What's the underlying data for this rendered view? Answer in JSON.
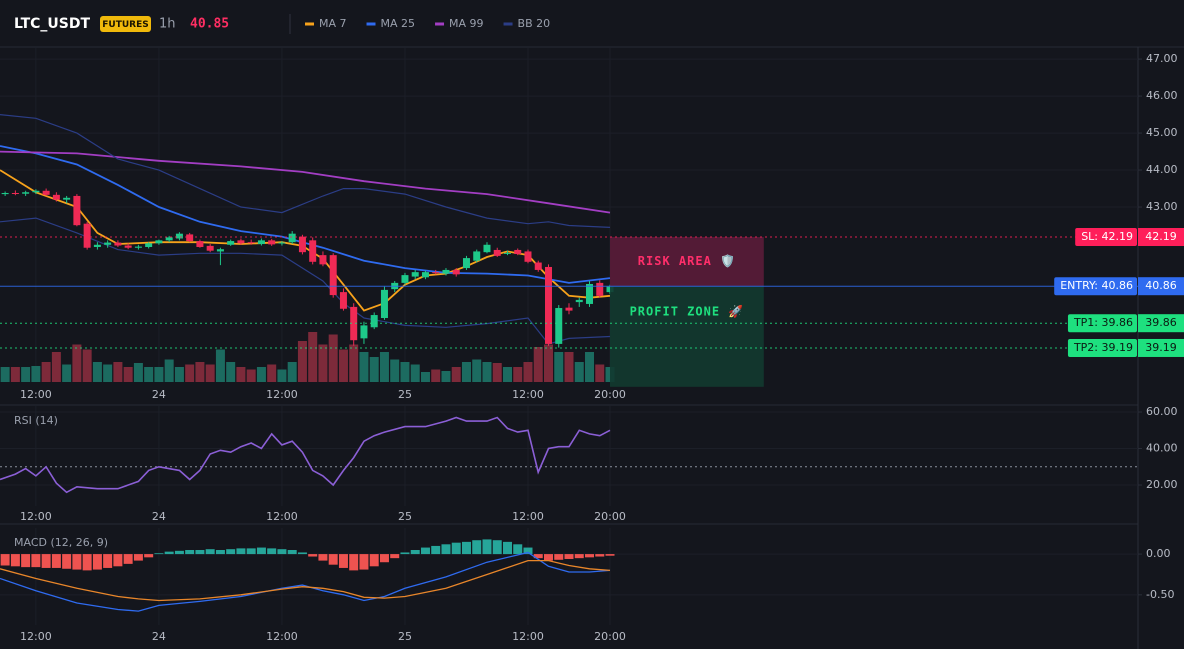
{
  "header": {
    "symbol": "LTC_USDT",
    "badge": "FUTURES",
    "interval": "1h",
    "price": 40.85
  },
  "chart_data": [
    {
      "type": "candlestick",
      "xlim": [
        0.5,
        111.5
      ],
      "xticks": [
        {
          "value": 4,
          "label": "12:00"
        },
        {
          "value": 16,
          "label": "24"
        },
        {
          "value": 28,
          "label": "12:00"
        },
        {
          "value": 40,
          "label": "25"
        },
        {
          "value": 52,
          "label": "12:00"
        },
        {
          "value": 60,
          "label": "20:00"
        }
      ],
      "ylim": [
        38.27,
        47.3
      ],
      "yticks": [
        {
          "value": 47,
          "label": "47.00"
        },
        {
          "value": 46,
          "label": "46.00"
        },
        {
          "value": 45,
          "label": "45.00"
        },
        {
          "value": 44,
          "label": "44.00"
        },
        {
          "value": 43,
          "label": "43.00"
        }
      ],
      "up_color": "#1ec98a",
      "down_color": "#ef2a55",
      "volume_up_color": "#1c6b60",
      "volume_down_color": "#7d2a3a",
      "x": [
        1,
        2,
        3,
        4,
        5,
        6,
        7,
        8,
        9,
        10,
        11,
        12,
        13,
        14,
        15,
        16,
        17,
        18,
        19,
        20,
        21,
        22,
        23,
        24,
        25,
        26,
        27,
        28,
        29,
        30,
        31,
        32,
        33,
        34,
        35,
        36,
        37,
        38,
        39,
        40,
        41,
        42,
        43,
        44,
        45,
        46,
        47,
        48,
        49,
        50,
        51,
        52,
        53,
        54,
        55,
        56,
        57,
        58,
        59,
        60
      ],
      "open": [
        43.35,
        43.38,
        43.36,
        43.4,
        43.44,
        43.33,
        43.2,
        43.3,
        42.55,
        41.92,
        41.98,
        42.04,
        41.96,
        41.9,
        41.92,
        42.02,
        42.1,
        42.15,
        42.26,
        42.08,
        41.95,
        41.8,
        41.98,
        42.1,
        42.05,
        42.0,
        42.1,
        42.02,
        42.05,
        42.2,
        42.1,
        41.7,
        41.7,
        40.7,
        40.3,
        39.45,
        39.75,
        40.0,
        40.78,
        40.95,
        41.12,
        41.1,
        41.24,
        41.2,
        41.3,
        41.35,
        41.55,
        41.78,
        41.84,
        41.74,
        41.84,
        41.8,
        41.5,
        41.38,
        39.3,
        40.28,
        40.43,
        40.38,
        40.95,
        40.7
      ],
      "high": [
        43.42,
        43.45,
        43.44,
        43.48,
        43.5,
        43.4,
        43.3,
        43.35,
        42.6,
        42.05,
        42.1,
        42.1,
        42.02,
        41.98,
        42.05,
        42.12,
        42.22,
        42.32,
        42.3,
        42.12,
        42.0,
        41.9,
        42.12,
        42.15,
        42.12,
        42.15,
        42.14,
        42.08,
        42.35,
        42.25,
        42.18,
        41.8,
        41.75,
        40.8,
        40.4,
        39.9,
        40.15,
        40.85,
        41.0,
        41.22,
        41.3,
        41.28,
        41.3,
        41.35,
        41.35,
        41.68,
        41.85,
        42.05,
        41.9,
        41.82,
        41.88,
        41.85,
        41.55,
        41.45,
        40.35,
        40.4,
        40.55,
        41.0,
        41.02,
        40.9
      ],
      "low": [
        43.3,
        43.32,
        43.3,
        43.35,
        43.3,
        43.15,
        43.1,
        42.48,
        41.85,
        41.85,
        41.9,
        41.92,
        41.86,
        41.85,
        41.88,
        41.98,
        42.05,
        42.1,
        42.05,
        41.9,
        41.78,
        41.43,
        41.95,
        41.98,
        41.98,
        41.96,
        41.95,
        41.96,
        42.0,
        41.72,
        41.45,
        41.4,
        40.55,
        40.2,
        39.25,
        39.3,
        39.7,
        39.95,
        40.7,
        40.9,
        41.05,
        41.05,
        41.18,
        41.15,
        41.12,
        41.3,
        41.5,
        41.75,
        41.65,
        41.7,
        41.7,
        41.48,
        41.25,
        39.25,
        39.2,
        40.1,
        40.3,
        40.3,
        40.55,
        40.65
      ],
      "close": [
        43.38,
        43.36,
        43.4,
        43.44,
        43.33,
        43.2,
        43.25,
        42.51,
        41.9,
        41.98,
        42.04,
        41.96,
        41.9,
        41.93,
        42.02,
        42.1,
        42.18,
        42.28,
        42.08,
        41.92,
        41.82,
        41.86,
        42.08,
        42.02,
        42.03,
        42.1,
        41.99,
        42.04,
        42.28,
        41.78,
        41.52,
        41.45,
        40.62,
        40.25,
        39.4,
        39.8,
        40.08,
        40.76,
        40.95,
        41.16,
        41.24,
        41.24,
        41.22,
        41.3,
        41.18,
        41.62,
        41.8,
        41.98,
        41.68,
        41.76,
        41.73,
        41.52,
        41.3,
        39.3,
        40.27,
        40.2,
        40.49,
        40.92,
        40.6,
        40.85
      ],
      "vlim": [
        0,
        100
      ],
      "volume": [
        30,
        30,
        30,
        32,
        40,
        60,
        35,
        75,
        65,
        40,
        35,
        40,
        30,
        38,
        30,
        30,
        45,
        30,
        35,
        40,
        35,
        65,
        40,
        30,
        25,
        30,
        35,
        25,
        40,
        82,
        100,
        75,
        95,
        65,
        75,
        60,
        50,
        60,
        45,
        40,
        35,
        20,
        25,
        22,
        30,
        40,
        45,
        40,
        38,
        30,
        30,
        40,
        70,
        75,
        60,
        60,
        40,
        60,
        35,
        30
      ],
      "series": [
        {
          "name": "MA 7",
          "color": "#f7a21b",
          "x": [
            0.5,
            4,
            8,
            10,
            12,
            16,
            20,
            24,
            28,
            30,
            32,
            34,
            36,
            38,
            40,
            42,
            44,
            46,
            48,
            50,
            52,
            54,
            56,
            58,
            60
          ],
          "values": [
            44.0,
            43.4,
            43.0,
            42.3,
            42.0,
            42.05,
            42.05,
            42.0,
            42.05,
            41.95,
            41.6,
            40.9,
            40.2,
            40.4,
            40.9,
            41.15,
            41.2,
            41.4,
            41.65,
            41.8,
            41.7,
            41.1,
            40.6,
            40.55,
            40.6
          ]
        },
        {
          "name": "MA 25",
          "color": "#2f6bf0",
          "x": [
            0.5,
            4,
            8,
            12,
            16,
            20,
            24,
            28,
            30,
            32,
            36,
            40,
            44,
            48,
            52,
            56,
            60
          ],
          "values": [
            44.65,
            44.45,
            44.15,
            43.6,
            43.0,
            42.6,
            42.35,
            42.2,
            42.05,
            41.9,
            41.55,
            41.35,
            41.22,
            41.2,
            41.15,
            40.95,
            41.08
          ]
        },
        {
          "name": "MA 99",
          "color": "#a33ec4",
          "x": [
            0.5,
            8,
            16,
            24,
            30,
            36,
            42,
            48,
            54,
            60
          ],
          "values": [
            44.5,
            44.45,
            44.25,
            44.1,
            43.95,
            43.7,
            43.5,
            43.35,
            43.1,
            42.85
          ]
        },
        {
          "name": "BB 20",
          "color": "#2b3d86",
          "x": [
            0.5,
            4,
            8,
            12,
            16,
            20,
            24,
            28,
            32,
            34,
            36,
            40,
            44,
            48,
            52,
            54,
            56,
            60
          ],
          "upper": [
            45.5,
            45.4,
            45.0,
            44.3,
            44.0,
            43.5,
            43.0,
            42.85,
            43.3,
            43.5,
            43.5,
            43.35,
            43.0,
            42.7,
            42.55,
            42.6,
            42.5,
            42.45
          ],
          "lower": [
            42.6,
            42.7,
            42.3,
            41.85,
            41.7,
            41.75,
            41.75,
            41.7,
            41.0,
            40.4,
            40.0,
            39.8,
            39.75,
            39.85,
            40.0,
            39.3,
            39.45,
            39.5
          ]
        }
      ],
      "levels": [
        {
          "label": "SL: 42.19",
          "value": 42.19,
          "color": "#ff1f5a",
          "text_color": "#ffffff",
          "style": "dotted"
        },
        {
          "label": "ENTRY: 40.86",
          "value": 40.86,
          "color": "#2f6bf0",
          "text_color": "#ffffff",
          "style": "solid"
        },
        {
          "label": "TP1: 39.86",
          "value": 39.86,
          "color": "#1ee07f",
          "text_color": "#0b1a12",
          "style": "dotted"
        },
        {
          "label": "TP2: 39.19",
          "value": 39.19,
          "color": "#1ee07f",
          "text_color": "#0b1a12",
          "style": "dotted"
        }
      ],
      "zones": [
        {
          "label": "RISK AREA 🛡️",
          "x": [
            60,
            75
          ],
          "y": [
            40.86,
            42.19
          ],
          "color": "#5a1c3a",
          "text_color": "#ff2e6a"
        },
        {
          "label": "PROFIT ZONE 🚀",
          "x": [
            60,
            75
          ],
          "y": [
            38.14,
            40.86
          ],
          "color": "#123a30",
          "text_color": "#1ee07f"
        }
      ]
    },
    {
      "type": "line",
      "title": "RSI (14)",
      "xlim": [
        0.5,
        111.5
      ],
      "xticks": [
        {
          "value": 4,
          "label": "12:00"
        },
        {
          "value": 16,
          "label": "24"
        },
        {
          "value": 28,
          "label": "12:00"
        },
        {
          "value": 40,
          "label": "25"
        },
        {
          "value": 52,
          "label": "12:00"
        },
        {
          "value": 60,
          "label": "20:00"
        }
      ],
      "ylim": [
        8.5,
        63.3
      ],
      "yticks": [
        {
          "value": 60,
          "label": "60.00"
        },
        {
          "value": 40,
          "label": "40.00"
        },
        {
          "value": 20,
          "label": "20.00"
        }
      ],
      "hline": 30,
      "series": [
        {
          "color": "#8b5fd6",
          "x": [
            0.5,
            2,
            3,
            4,
            5,
            6,
            7,
            8,
            10,
            12,
            14,
            15,
            16,
            18,
            19,
            20,
            21,
            22,
            23,
            24,
            25,
            26,
            27,
            28,
            29,
            30,
            31,
            32,
            33,
            34,
            35,
            36,
            37,
            38,
            40,
            42,
            44,
            45,
            46,
            48,
            49,
            50,
            51,
            52,
            53,
            54,
            55,
            56,
            57,
            58,
            59,
            60
          ],
          "values": [
            23,
            26,
            29,
            25,
            30,
            21,
            16,
            19,
            18,
            18,
            22,
            28,
            30,
            28,
            23,
            28,
            37,
            39,
            38,
            41,
            43,
            40,
            48,
            42,
            44,
            38,
            28,
            25,
            20,
            28,
            35,
            44,
            47,
            49,
            52,
            52,
            55,
            57,
            55,
            55,
            57,
            51,
            49,
            50,
            27,
            40,
            41,
            41,
            50,
            48,
            47,
            50
          ]
        }
      ]
    },
    {
      "type": "macd",
      "title": "MACD (12, 26, 9)",
      "xlim": [
        0.5,
        111.5
      ],
      "xticks": [
        {
          "value": 4,
          "label": "12:00"
        },
        {
          "value": 16,
          "label": "24"
        },
        {
          "value": 28,
          "label": "12:00"
        },
        {
          "value": 40,
          "label": "25"
        },
        {
          "value": 52,
          "label": "12:00"
        },
        {
          "value": 60,
          "label": "20:00"
        }
      ],
      "ylim": [
        -0.87,
        0.32
      ],
      "yticks": [
        {
          "value": 0,
          "label": "0.00"
        },
        {
          "value": -0.5,
          "label": "-0.50"
        }
      ],
      "up_color": "#26a69a",
      "down_color": "#ef5350",
      "hist_x": [
        1,
        2,
        3,
        4,
        5,
        6,
        7,
        8,
        9,
        10,
        11,
        12,
        13,
        14,
        15,
        16,
        17,
        18,
        19,
        20,
        21,
        22,
        23,
        24,
        25,
        26,
        27,
        28,
        29,
        30,
        31,
        32,
        33,
        34,
        35,
        36,
        37,
        38,
        39,
        40,
        41,
        42,
        43,
        44,
        45,
        46,
        47,
        48,
        49,
        50,
        51,
        52,
        53,
        54,
        55,
        56,
        57,
        58,
        59,
        60
      ],
      "histogram": [
        -0.14,
        -0.15,
        -0.16,
        -0.16,
        -0.17,
        -0.17,
        -0.18,
        -0.19,
        -0.2,
        -0.19,
        -0.17,
        -0.15,
        -0.12,
        -0.08,
        -0.04,
        0.01,
        0.03,
        0.04,
        0.05,
        0.05,
        0.06,
        0.05,
        0.06,
        0.07,
        0.07,
        0.08,
        0.07,
        0.06,
        0.05,
        0.02,
        -0.03,
        -0.08,
        -0.13,
        -0.17,
        -0.2,
        -0.19,
        -0.15,
        -0.1,
        -0.05,
        0.02,
        0.05,
        0.08,
        0.1,
        0.12,
        0.14,
        0.15,
        0.17,
        0.18,
        0.17,
        0.15,
        0.12,
        0.08,
        -0.05,
        -0.08,
        -0.07,
        -0.06,
        -0.05,
        -0.04,
        -0.03,
        -0.02
      ],
      "x": [
        0.5,
        4,
        8,
        12,
        14,
        16,
        20,
        24,
        28,
        30,
        32,
        34,
        36,
        38,
        40,
        44,
        48,
        52,
        54,
        56,
        58,
        60
      ],
      "series": [
        {
          "color": "#2f6bf0",
          "values": [
            -0.3,
            -0.45,
            -0.6,
            -0.68,
            -0.7,
            -0.63,
            -0.58,
            -0.52,
            -0.42,
            -0.38,
            -0.45,
            -0.5,
            -0.57,
            -0.52,
            -0.42,
            -0.28,
            -0.1,
            0.02,
            -0.15,
            -0.22,
            -0.22,
            -0.2
          ]
        },
        {
          "color": "#e8862a",
          "values": [
            -0.18,
            -0.3,
            -0.42,
            -0.52,
            -0.55,
            -0.57,
            -0.55,
            -0.5,
            -0.43,
            -0.4,
            -0.42,
            -0.46,
            -0.53,
            -0.54,
            -0.52,
            -0.42,
            -0.25,
            -0.08,
            -0.08,
            -0.14,
            -0.18,
            -0.2
          ]
        }
      ]
    }
  ]
}
